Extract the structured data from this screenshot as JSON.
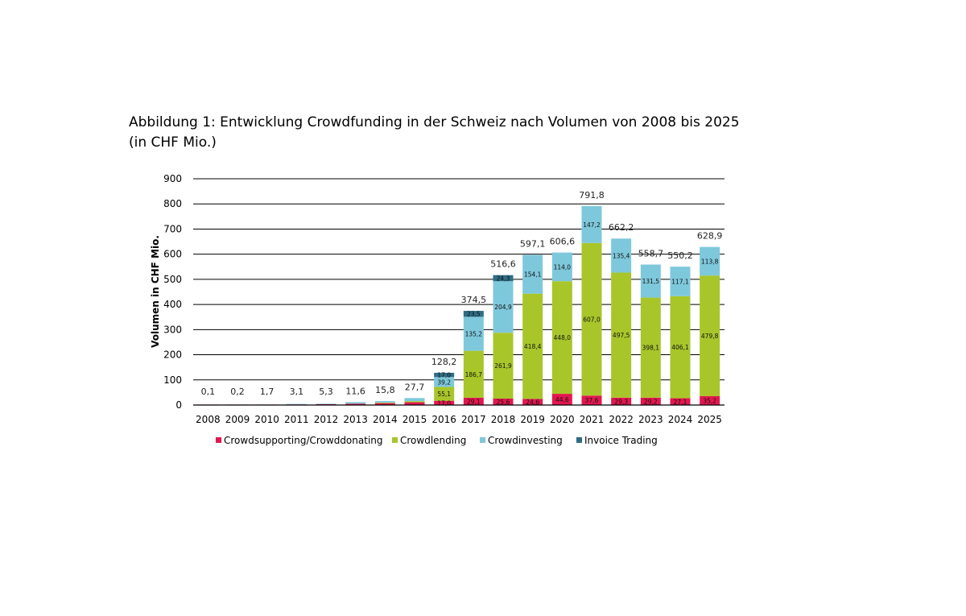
{
  "caption": "Abbildung 1: Entwicklung Crowdfunding in der Schweiz nach Volumen von 2008 bis 2025 (in CHF Mio.)",
  "chart_data": {
    "type": "bar",
    "stacked": true,
    "title": "",
    "xlabel": "",
    "ylabel": "Volumen in CHF Mio.",
    "ylim": [
      0,
      900
    ],
    "yticks": [
      0,
      100,
      200,
      300,
      400,
      500,
      600,
      700,
      800,
      900
    ],
    "grid": true,
    "legend_position": "bottom",
    "categories": [
      "2008",
      "2009",
      "2010",
      "2011",
      "2012",
      "2013",
      "2014",
      "2015",
      "2016",
      "2017",
      "2018",
      "2019",
      "2020",
      "2021",
      "2022",
      "2023",
      "2024",
      "2025"
    ],
    "totals": [
      "0,1",
      "0,2",
      "1,7",
      "3,1",
      "5,3",
      "11,6",
      "15,8",
      "27,7",
      "128,2",
      "374,5",
      "516,6",
      "597,1",
      "606,6",
      "791,8",
      "662,2",
      "558,7",
      "550,2",
      "628,9"
    ],
    "series": [
      {
        "name": "Crowdsupporting/Crowddonating",
        "color": "#e3174f",
        "values": [
          0.1,
          0.2,
          1.7,
          2.5,
          3.5,
          5.5,
          7.5,
          11.0,
          17.0,
          29.1,
          25.6,
          24.6,
          44.6,
          37.6,
          29.3,
          29.2,
          27.1,
          35.2
        ],
        "labels": [
          "",
          "",
          "",
          "",
          "",
          "",
          "",
          "",
          "17,0",
          "29,1",
          "25,6",
          "24,6",
          "44,6",
          "37,6",
          "29,3",
          "29,2",
          "27,1",
          "35,2"
        ]
      },
      {
        "name": "Crowdlending",
        "color": "#a8c62a",
        "values": [
          0,
          0,
          0,
          0,
          0,
          0,
          2.5,
          4.5,
          55.1,
          186.7,
          261.9,
          418.4,
          448.0,
          607.0,
          497.5,
          398.1,
          406.1,
          479.8
        ],
        "labels": [
          "",
          "",
          "",
          "",
          "",
          "",
          "",
          "",
          "55,1",
          "186,7",
          "261,9",
          "418,4",
          "448,0",
          "607,0",
          "497,5",
          "398,1",
          "406,1",
          "479,8"
        ]
      },
      {
        "name": "Crowdinvesting",
        "color": "#7ec8dc",
        "values": [
          0,
          0,
          0,
          0.6,
          1.8,
          6.1,
          5.8,
          12.2,
          39.2,
          135.2,
          204.9,
          154.1,
          114.0,
          147.2,
          135.4,
          131.5,
          117.1,
          113.8
        ],
        "labels": [
          "",
          "",
          "",
          "",
          "",
          "",
          "",
          "",
          "39,2",
          "135,2",
          "204,9",
          "154,1",
          "114,0",
          "147,2",
          "135,4",
          "131,5",
          "117,1",
          "113,8"
        ]
      },
      {
        "name": "Invoice Trading",
        "color": "#2e6d85",
        "values": [
          0,
          0,
          0,
          0,
          0,
          0,
          0,
          0,
          17.0,
          23.5,
          24.3,
          0,
          0,
          0,
          0,
          0,
          0,
          0
        ],
        "labels": [
          "",
          "",
          "",
          "",
          "",
          "",
          "",
          "",
          "17,0",
          "23,5",
          "24,3",
          "",
          "",
          "",
          "",
          "",
          "",
          ""
        ]
      }
    ]
  }
}
